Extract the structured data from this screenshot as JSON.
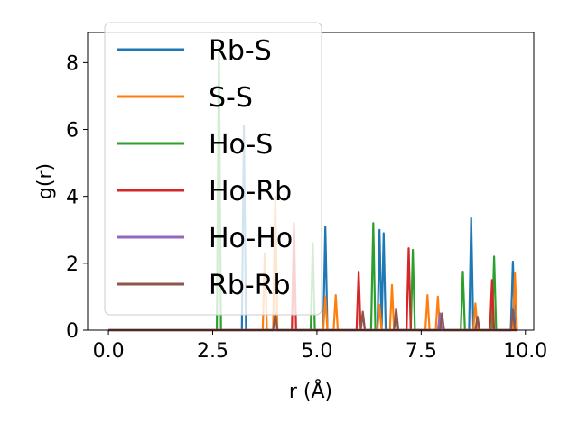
{
  "chart_data": {
    "type": "line",
    "title": "",
    "xlabel": "r (Å)",
    "ylabel": "g(r)",
    "xlim": [
      -0.5,
      10.2
    ],
    "ylim": [
      0,
      8.9
    ],
    "xticks": [
      0.0,
      2.5,
      5.0,
      7.5,
      10.0
    ],
    "xtick_labels": [
      "0.0",
      "2.5",
      "5.0",
      "7.5",
      "10.0"
    ],
    "yticks": [
      0,
      2,
      4,
      6,
      8
    ],
    "ytick_labels": [
      "0",
      "2",
      "4",
      "6",
      "8"
    ],
    "grid": false,
    "legend_position": "upper-left",
    "series": [
      {
        "name": "Rb-S",
        "color": "#1f77b4",
        "peaks": [
          [
            3.25,
            6.1
          ],
          [
            5.2,
            3.1
          ],
          [
            6.5,
            3.0
          ],
          [
            6.6,
            2.9
          ],
          [
            8.7,
            3.35
          ],
          [
            9.7,
            2.05
          ]
        ]
      },
      {
        "name": "S-S",
        "color": "#ff7f0e",
        "peaks": [
          [
            3.75,
            2.3
          ],
          [
            4.0,
            4.0
          ],
          [
            5.2,
            1.0
          ],
          [
            5.45,
            1.05
          ],
          [
            6.5,
            0.75
          ],
          [
            6.8,
            1.35
          ],
          [
            7.65,
            1.05
          ],
          [
            7.9,
            1.0
          ],
          [
            8.8,
            0.8
          ],
          [
            9.75,
            1.7
          ]
        ]
      },
      {
        "name": "Ho-S",
        "color": "#2ca02c",
        "peaks": [
          [
            2.65,
            8.5
          ],
          [
            4.9,
            2.6
          ],
          [
            6.35,
            3.2
          ],
          [
            7.3,
            2.4
          ],
          [
            8.5,
            1.75
          ],
          [
            9.25,
            2.2
          ]
        ]
      },
      {
        "name": "Ho-Rb",
        "color": "#d62728",
        "peaks": [
          [
            4.45,
            3.2
          ],
          [
            6.0,
            1.75
          ],
          [
            7.2,
            2.45
          ],
          [
            9.2,
            1.5
          ]
        ]
      },
      {
        "name": "Ho-Ho",
        "color": "#9467bd",
        "peaks": [
          [
            6.1,
            0.5
          ],
          [
            6.9,
            0.6
          ],
          [
            7.95,
            0.5
          ],
          [
            8.85,
            0.4
          ],
          [
            9.7,
            0.65
          ]
        ]
      },
      {
        "name": "Rb-Rb",
        "color": "#8c564b",
        "peaks": [
          [
            4.0,
            0.5
          ],
          [
            6.1,
            0.55
          ],
          [
            6.9,
            0.65
          ],
          [
            8.0,
            0.5
          ],
          [
            8.85,
            0.4
          ],
          [
            9.7,
            0.6
          ]
        ]
      }
    ]
  }
}
